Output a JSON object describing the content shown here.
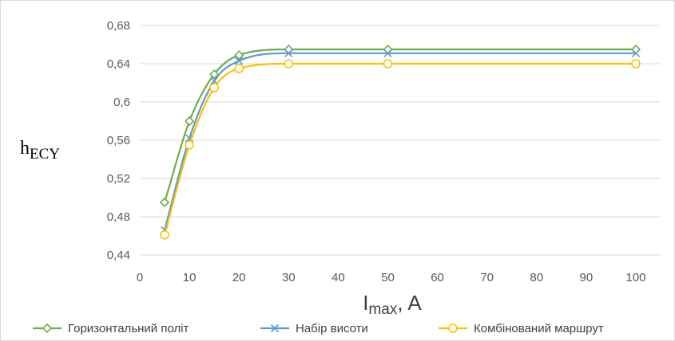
{
  "chart_data": {
    "type": "line",
    "smooth": true,
    "xlabel": {
      "main": "I",
      "sub": "max",
      "rest": ", A"
    },
    "ylabel": {
      "main": "h",
      "sub": "ECY"
    },
    "xlim": [
      0,
      105
    ],
    "ylim": [
      0.44,
      0.68
    ],
    "x_ticks": [
      0,
      10,
      20,
      30,
      40,
      50,
      60,
      70,
      80,
      90,
      100
    ],
    "x_tick_labels": [
      "0",
      "10",
      "20",
      "30",
      "40",
      "50",
      "60",
      "70",
      "80",
      "90",
      "100"
    ],
    "y_ticks": [
      0.44,
      0.48,
      0.52,
      0.56,
      0.6,
      0.64,
      0.68
    ],
    "y_tick_labels": [
      "0,44",
      "0,48",
      "0,52",
      "0,56",
      "0,6",
      "0,64",
      "0,68"
    ],
    "grid": "horizontal",
    "legend_position": "bottom",
    "series": [
      {
        "name": "Горизонтальний політ",
        "color": "#70ad47",
        "marker": "diamond",
        "x": [
          5,
          10,
          15,
          20,
          30,
          50,
          100
        ],
        "y": [
          0.495,
          0.58,
          0.629,
          0.649,
          0.655,
          0.655,
          0.655
        ]
      },
      {
        "name": "Набір висоти",
        "color": "#5b9bd5",
        "marker": "x",
        "x": [
          5,
          10,
          15,
          20,
          30,
          50,
          100
        ],
        "y": [
          0.466,
          0.562,
          0.622,
          0.643,
          0.651,
          0.651,
          0.651
        ]
      },
      {
        "name": "Комбінований маршрут",
        "color": "#ffc000",
        "marker": "circle",
        "x": [
          5,
          10,
          15,
          20,
          30,
          50,
          100
        ],
        "y": [
          0.461,
          0.555,
          0.615,
          0.635,
          0.64,
          0.64,
          0.64
        ]
      }
    ]
  }
}
